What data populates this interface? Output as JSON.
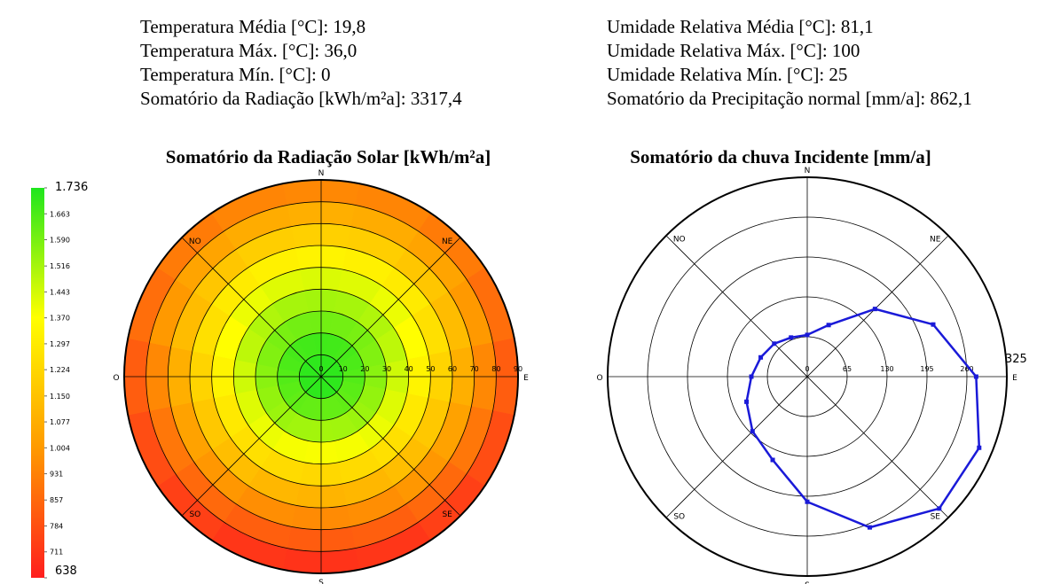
{
  "stats": {
    "left": [
      "Temperatura Média [°C]: 19,8",
      "Temperatura Máx. [°C]: 36,0",
      "Temperatura Mín. [°C]: 0",
      "Somatório da Radiação [kWh/m²a]: 3317,4"
    ],
    "right": [
      "Umidade Relativa Média [°C]: 81,1",
      "Umidade Relativa Máx. [°C]: 100",
      "Umidade Relativa Mín. [°C]: 25",
      "Somatório da Precipitação normal [mm/a]: 862,1"
    ]
  },
  "chart_data": [
    {
      "type": "polar-heatmap",
      "title": "Somatório da Radiação Solar [kWh/m²a]",
      "categories": [
        "N",
        null,
        "NE",
        null,
        "E",
        null,
        "SE",
        null,
        "S",
        null,
        "SO",
        null,
        "O",
        null,
        "NO",
        null
      ],
      "ylim": [
        0,
        90
      ],
      "yticks": [
        0,
        10,
        20,
        30,
        40,
        50,
        60,
        70,
        80,
        90
      ],
      "values": [
        [
          1710,
          1710,
          1710,
          1710,
          1710,
          1710,
          1710,
          1710,
          1710,
          1710,
          1710,
          1710,
          1710,
          1710,
          1710,
          1710
        ],
        [
          1680,
          1678,
          1671,
          1661,
          1650,
          1639,
          1629,
          1622,
          1620,
          1622,
          1629,
          1639,
          1650,
          1661,
          1671,
          1678
        ],
        [
          1600,
          1597,
          1588,
          1575,
          1560,
          1545,
          1532,
          1523,
          1520,
          1523,
          1532,
          1545,
          1560,
          1575,
          1588,
          1597
        ],
        [
          1520,
          1515,
          1499,
          1477,
          1450,
          1423,
          1401,
          1385,
          1380,
          1385,
          1401,
          1423,
          1450,
          1477,
          1499,
          1515
        ],
        [
          1430,
          1422,
          1401,
          1368,
          1330,
          1292,
          1259,
          1238,
          1230,
          1238,
          1259,
          1292,
          1330,
          1368,
          1401,
          1422
        ],
        [
          1330,
          1321,
          1296,
          1259,
          1215,
          1171,
          1134,
          1109,
          1100,
          1109,
          1134,
          1171,
          1215,
          1259,
          1296,
          1321
        ],
        [
          1200,
          1191,
          1165,
          1126,
          1080,
          1034,
          995,
          969,
          960,
          969,
          995,
          1034,
          1080,
          1126,
          1165,
          1191
        ],
        [
          1080,
          1070,
          1042,
          1000,
          950,
          900,
          858,
          830,
          820,
          830,
          858,
          900,
          950,
          1000,
          1042,
          1070
        ],
        [
          950,
          941,
          913,
          873,
          825,
          777,
          737,
          710,
          700,
          710,
          737,
          777,
          825,
          873,
          913,
          941
        ]
      ],
      "clim": [
        638,
        1736
      ],
      "colorscale": [
        "#ff1e1e",
        "#ff9a00",
        "#ffff00",
        "#1ee61e"
      ],
      "cticks": [
        {
          "value": 1736,
          "label": "1.736"
        },
        {
          "value": 1663,
          "label": "1.663"
        },
        {
          "value": 1590,
          "label": "1.590"
        },
        {
          "value": 1516,
          "label": "1.516"
        },
        {
          "value": 1443,
          "label": "1.443"
        },
        {
          "value": 1370,
          "label": "1.370"
        },
        {
          "value": 1297,
          "label": "1.297"
        },
        {
          "value": 1224,
          "label": "1.224"
        },
        {
          "value": 1150,
          "label": "1.150"
        },
        {
          "value": 1077,
          "label": "1.077"
        },
        {
          "value": 1004,
          "label": "1.004"
        },
        931,
        857,
        784,
        711,
        638
      ]
    },
    {
      "type": "polar-line",
      "title": "Somatório da chuva Incidente [mm/a]",
      "categories": [
        "N",
        null,
        "NE",
        null,
        "E",
        null,
        "SE",
        null,
        "S",
        null,
        "SO",
        null,
        "O",
        null,
        "NO",
        null
      ],
      "ylim": [
        0,
        325
      ],
      "yticks": [
        0,
        65,
        130,
        195,
        260,
        325
      ],
      "values": [
        68,
        91,
        156,
        222,
        275,
        303,
        304,
        266,
        204,
        147,
        126,
        107,
        91,
        82,
        76,
        69
      ],
      "color": "#1a1ad8"
    }
  ]
}
